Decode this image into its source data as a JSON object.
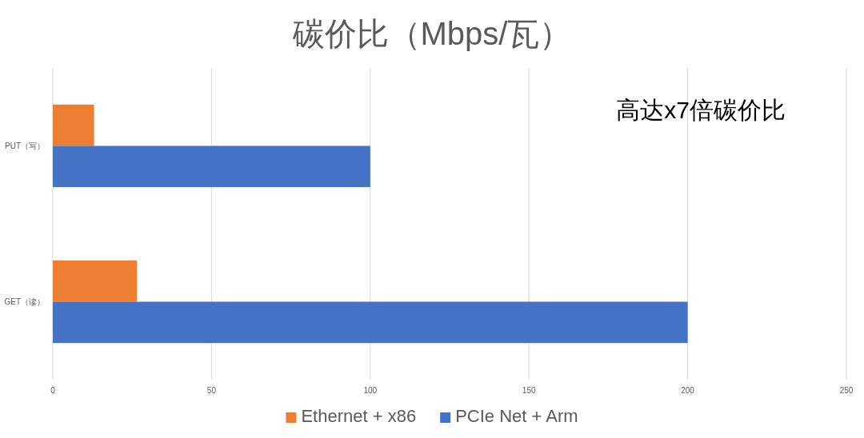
{
  "chart_data": {
    "type": "bar",
    "orientation": "horizontal",
    "title": "碳价比（Mbps/瓦）",
    "categories": [
      "PUT（写）",
      "GET（读）"
    ],
    "series": [
      {
        "name": "Ethernet + x86",
        "color": "#ed7d31",
        "values": [
          13,
          26.5
        ]
      },
      {
        "name": "PCIe Net + Arm",
        "color": "#4472c4",
        "values": [
          100,
          200
        ]
      }
    ],
    "xlim": [
      0,
      250
    ],
    "xticks": [
      0,
      50,
      100,
      150,
      200,
      250
    ],
    "grid": "x",
    "legend": "bottom",
    "annotations": [
      "高达x7倍碳价比"
    ]
  }
}
